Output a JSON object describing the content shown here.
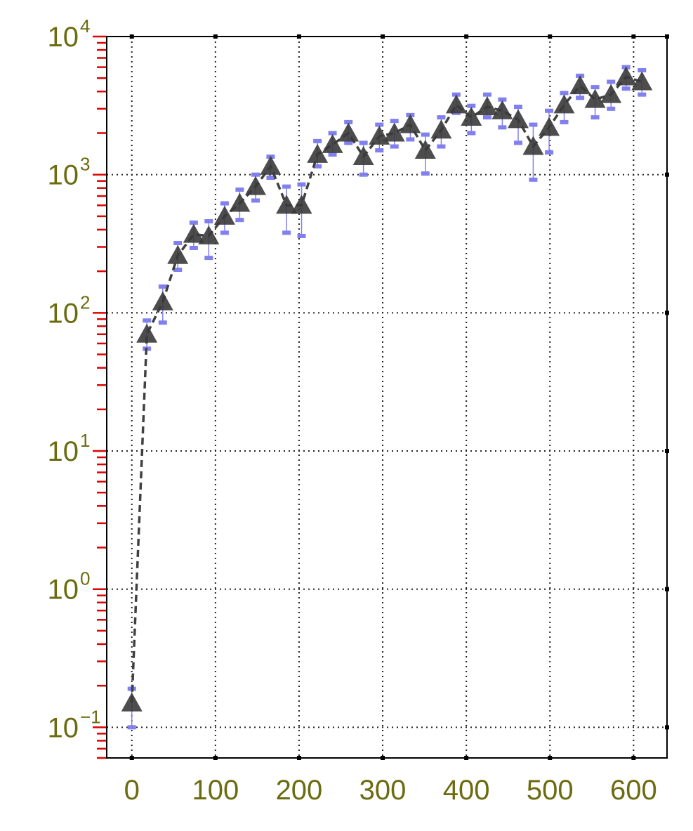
{
  "chart_data": {
    "type": "line",
    "title": "",
    "xlabel": "",
    "ylabel": "",
    "xlim": [
      -30,
      640
    ],
    "ylim": [
      0.06,
      10000
    ],
    "yscale": "log",
    "grid": true,
    "x_ticks": [
      0,
      100,
      200,
      300,
      400,
      500,
      600
    ],
    "x_tick_labels": [
      "0",
      "100",
      "200",
      "300",
      "400",
      "500",
      "600"
    ],
    "y_ticks": [
      0.1,
      1,
      10,
      100,
      1000,
      10000
    ],
    "y_tick_labels": [
      {
        "base": "10",
        "exp": "−1"
      },
      {
        "base": "10",
        "exp": "0"
      },
      {
        "base": "10",
        "exp": "1"
      },
      {
        "base": "10",
        "exp": "2"
      },
      {
        "base": "10",
        "exp": "3"
      },
      {
        "base": "10",
        "exp": "4"
      }
    ],
    "colors": {
      "tick_label": "#6b6b10",
      "minor_tick": "#e00000",
      "line": "#404040",
      "marker": "#3a3a3a",
      "error_bar": "#8080ee",
      "grid": "#222222"
    },
    "series": [
      {
        "marker": "triangle",
        "x": [
          0,
          18,
          37,
          55,
          74,
          92,
          111,
          129,
          148,
          166,
          185,
          203,
          222,
          240,
          259,
          277,
          296,
          314,
          333,
          351,
          370,
          388,
          406,
          425,
          443,
          462,
          480,
          499,
          517,
          536,
          554,
          573,
          591,
          610
        ],
        "y": [
          0.15,
          70,
          120,
          260,
          370,
          360,
          500,
          620,
          820,
          1150,
          600,
          600,
          1400,
          1650,
          2000,
          1350,
          1900,
          2000,
          2300,
          1500,
          2100,
          3200,
          2600,
          3100,
          2900,
          2500,
          1600,
          2200,
          3200,
          4400,
          3500,
          3800,
          5100,
          4700
        ],
        "y_low": [
          0.1,
          55,
          85,
          205,
          295,
          250,
          380,
          470,
          650,
          950,
          380,
          360,
          1150,
          1400,
          1700,
          1000,
          1500,
          1600,
          1800,
          1020,
          1600,
          2800,
          2000,
          2600,
          2200,
          1700,
          920,
          1450,
          2400,
          3600,
          2600,
          3000,
          4200,
          3800
        ],
        "y_high": [
          0.19,
          88,
          155,
          320,
          450,
          460,
          620,
          780,
          1000,
          1350,
          820,
          850,
          1750,
          2000,
          2400,
          1700,
          2300,
          2450,
          2700,
          1950,
          2600,
          3800,
          3150,
          3800,
          3500,
          3100,
          2300,
          2900,
          3900,
          5200,
          4300,
          4700,
          6000,
          5700
        ]
      }
    ]
  }
}
